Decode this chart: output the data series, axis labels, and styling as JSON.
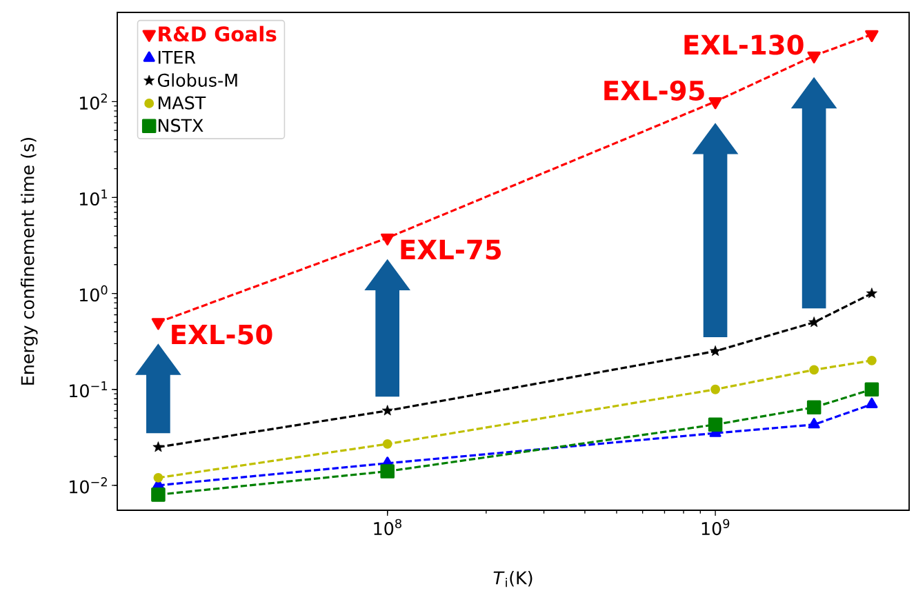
{
  "chart_data": {
    "type": "line",
    "xlabel": "*T*$_{i}$(K)",
    "ylabel": "Energy confinement time (s)",
    "x": [
      20000000,
      100000000,
      1000000000,
      2000000000,
      3000000000
    ],
    "series": [
      {
        "name": "R&D Goals",
        "color": "#ff0000",
        "marker": "triangle down",
        "values": [
          0.5,
          3.8,
          100,
          300,
          500
        ]
      },
      {
        "name": "ITER",
        "color": "#0000ff",
        "marker": "triangle",
        "values": [
          0.01,
          0.017,
          0.035,
          0.043,
          0.07
        ]
      },
      {
        "name": "Globus-M",
        "color": "#000000",
        "marker": "star",
        "values": [
          0.025,
          0.06,
          0.25,
          0.5,
          1.0
        ]
      },
      {
        "name": "MAST",
        "color": "#bfbf00",
        "marker": "circle",
        "values": [
          0.012,
          0.027,
          0.1,
          0.16,
          0.2
        ]
      },
      {
        "name": "NSTX",
        "color": "#008000",
        "marker": "square",
        "values": [
          0.008,
          0.014,
          0.043,
          0.065,
          0.1
        ]
      }
    ],
    "log": "xy",
    "line_style": "dashed",
    "legend": "top left",
    "xlim": [
      15000000,
      3900000000
    ],
    "ylim": [
      0.0055,
      850
    ],
    "xticks": [
      {
        "value": 100000000,
        "label": "10$^{8}$"
      },
      {
        "value": 1000000000,
        "label": "10$^{9}$"
      }
    ],
    "yticks": [
      {
        "value": 0.01,
        "label": "10$^{−2}$"
      },
      {
        "value": 0.1,
        "label": "10$^{−1}$"
      },
      {
        "value": 1,
        "label": "10$^{0}$"
      },
      {
        "value": 10,
        "label": "10$^{1}$"
      },
      {
        "value": 100,
        "label": "10$^{2}$"
      }
    ],
    "annotations": [
      {
        "text": "EXL-50",
        "x": 20000000,
        "y": 0.5
      },
      {
        "text": "EXL-75",
        "x": 100000000,
        "y": 3.8
      },
      {
        "text": "EXL-95",
        "x": 1000000000,
        "y": 100
      },
      {
        "text": "EXL-130",
        "x": 2000000000,
        "y": 300
      }
    ]
  }
}
